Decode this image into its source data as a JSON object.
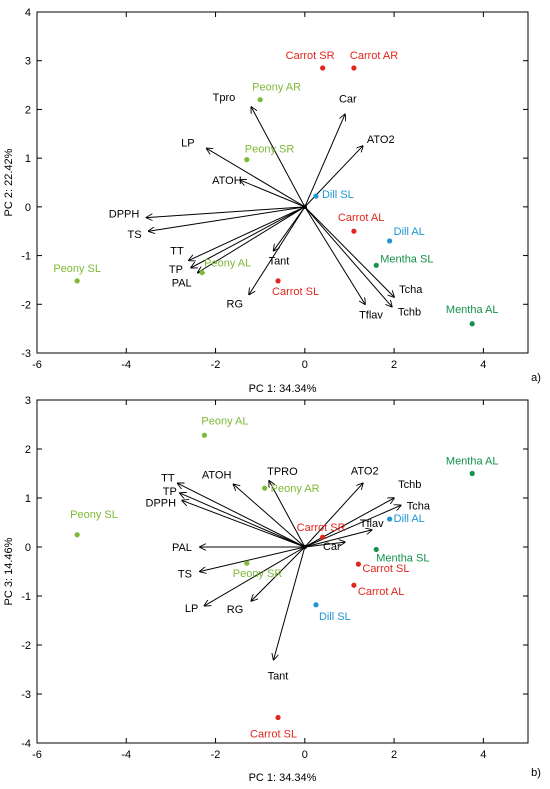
{
  "colors": {
    "peony": "#7dba35",
    "carrot": "#e0261e",
    "dill": "#1e96d2",
    "mentha": "#14924a",
    "vector": "#000000",
    "frame": "#000000"
  },
  "chart_data": [
    {
      "type": "scatter",
      "panel_label": "a)",
      "xlabel": "PC 1: 34.34%",
      "ylabel": "PC 2: 22.42%",
      "xlim": [
        -6,
        5
      ],
      "ylim": [
        -3,
        4
      ],
      "x_ticks": [
        "-6",
        "-4",
        "-2",
        "0",
        "2",
        "4"
      ],
      "y_ticks": [
        "4",
        "3",
        "2",
        "1",
        "0",
        "-1",
        "-2",
        "-3"
      ],
      "x_tick_values": [
        -6,
        -4,
        -2,
        0,
        2,
        4
      ],
      "y_tick_values": [
        4,
        3,
        2,
        1,
        0,
        -1,
        -2,
        -3
      ],
      "points": [
        {
          "label": "Carrot SR",
          "group": "carrot",
          "x": 0.4,
          "y": 2.85
        },
        {
          "label": "Carrot AR",
          "group": "carrot",
          "x": 1.1,
          "y": 2.85
        },
        {
          "label": "Peony AR",
          "group": "peony",
          "x": -1.0,
          "y": 2.2
        },
        {
          "label": "Peony SR",
          "group": "peony",
          "x": -1.3,
          "y": 0.97
        },
        {
          "label": "Dill SL",
          "group": "dill",
          "x": 0.25,
          "y": 0.22
        },
        {
          "label": "Carrot AL",
          "group": "carrot",
          "x": 1.1,
          "y": -0.5
        },
        {
          "label": "Dill AL",
          "group": "dill",
          "x": 1.9,
          "y": -0.7
        },
        {
          "label": "Mentha SL",
          "group": "mentha",
          "x": 1.6,
          "y": -1.2
        },
        {
          "label": "Peony AL",
          "group": "peony",
          "x": -2.3,
          "y": -1.35
        },
        {
          "label": "Carrot SL",
          "group": "carrot",
          "x": -0.6,
          "y": -1.52
        },
        {
          "label": "Peony SL",
          "group": "peony",
          "x": -5.1,
          "y": -1.52
        },
        {
          "label": "Mentha AL",
          "group": "mentha",
          "x": 3.75,
          "y": -2.4
        }
      ],
      "vectors": [
        {
          "label": "Tpro",
          "x": -1.2,
          "y": 2.05
        },
        {
          "label": "Car",
          "x": 0.9,
          "y": 1.9
        },
        {
          "label": "LP",
          "x": -2.2,
          "y": 1.2
        },
        {
          "label": "ATO2",
          "x": 1.3,
          "y": 1.25
        },
        {
          "label": "ATOH",
          "x": -1.45,
          "y": 0.55
        },
        {
          "label": "DPPH",
          "x": -3.55,
          "y": -0.22
        },
        {
          "label": "TS",
          "x": -3.5,
          "y": -0.5
        },
        {
          "label": "TT",
          "x": -2.6,
          "y": -1.1
        },
        {
          "label": "TP",
          "x": -2.55,
          "y": -1.25
        },
        {
          "label": "PAL",
          "x": -2.4,
          "y": -1.35
        },
        {
          "label": "Tant",
          "x": -0.7,
          "y": -0.9
        },
        {
          "label": "RG",
          "x": -1.25,
          "y": -1.8
        },
        {
          "label": "Tflav",
          "x": 1.35,
          "y": -2.0
        },
        {
          "label": "Tcha",
          "x": 2.0,
          "y": -1.85
        },
        {
          "label": "Tchb",
          "x": 1.95,
          "y": -2.05
        }
      ]
    },
    {
      "type": "scatter",
      "panel_label": "b)",
      "xlabel": "PC 1: 34.34%",
      "ylabel": "PC 3: 14.46%",
      "xlim": [
        -6,
        5
      ],
      "ylim": [
        -4,
        3
      ],
      "x_ticks": [
        "-6",
        "-4",
        "-2",
        "0",
        "2",
        "4"
      ],
      "y_ticks": [
        "3",
        "2",
        "1",
        "0",
        "-1",
        "-2",
        "-3",
        "-4"
      ],
      "x_tick_values": [
        -6,
        -4,
        -2,
        0,
        2,
        4
      ],
      "y_tick_values": [
        3,
        2,
        1,
        0,
        -1,
        -2,
        -3,
        -4
      ],
      "points": [
        {
          "label": "Peony AL",
          "group": "peony",
          "x": -2.25,
          "y": 2.28
        },
        {
          "label": "Mentha AL",
          "group": "mentha",
          "x": 3.75,
          "y": 1.5
        },
        {
          "label": "Peony AR",
          "group": "peony",
          "x": -0.9,
          "y": 1.2
        },
        {
          "label": "Dill AL",
          "group": "dill",
          "x": 1.9,
          "y": 0.57
        },
        {
          "label": "Peony SL",
          "group": "peony",
          "x": -5.1,
          "y": 0.25
        },
        {
          "label": "Carrot SR",
          "group": "carrot",
          "x": 0.4,
          "y": 0.2
        },
        {
          "label": "Mentha SL",
          "group": "mentha",
          "x": 1.6,
          "y": -0.05
        },
        {
          "label": "Peony SR",
          "group": "peony",
          "x": -1.3,
          "y": -0.33
        },
        {
          "label": "Carrot SL",
          "group": "carrot",
          "x": 1.2,
          "y": -0.35
        },
        {
          "label": "Carrot AL",
          "group": "carrot",
          "x": 1.1,
          "y": -0.78
        },
        {
          "label": "Dill SL",
          "group": "dill",
          "x": 0.25,
          "y": -1.18
        },
        {
          "label": "Carrot SL",
          "group": "carrot",
          "x": -0.6,
          "y": -3.48
        }
      ],
      "vectors": [
        {
          "label": "TT",
          "x": -2.85,
          "y": 1.3
        },
        {
          "label": "TP",
          "x": -2.8,
          "y": 1.1
        },
        {
          "label": "DPPH",
          "x": -2.75,
          "y": 0.95
        },
        {
          "label": "ATOH",
          "x": -1.6,
          "y": 1.28
        },
        {
          "label": "TPRO",
          "x": -0.8,
          "y": 1.35
        },
        {
          "label": "ATO2",
          "x": 1.3,
          "y": 1.3
        },
        {
          "label": "Tchb",
          "x": 2.0,
          "y": 1.0
        },
        {
          "label": "Tcha",
          "x": 2.15,
          "y": 0.85
        },
        {
          "label": "Tflav",
          "x": 1.5,
          "y": 0.35
        },
        {
          "label": "Car",
          "x": 0.9,
          "y": 0.1
        },
        {
          "label": "PAL",
          "x": -2.35,
          "y": 0.0
        },
        {
          "label": "TS",
          "x": -2.35,
          "y": -0.5
        },
        {
          "label": "LP",
          "x": -2.25,
          "y": -1.2
        },
        {
          "label": "RG",
          "x": -1.2,
          "y": -1.1
        },
        {
          "label": "Tant",
          "x": -0.7,
          "y": -2.3
        }
      ]
    }
  ]
}
